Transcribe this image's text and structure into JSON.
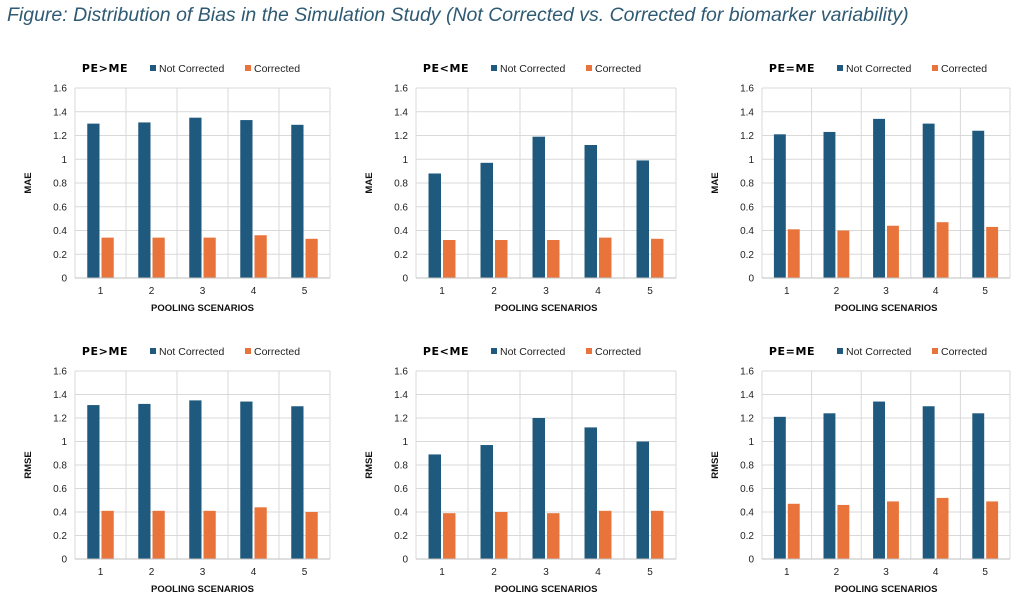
{
  "figure_title": "Figure:  Distribution of Bias in the Simulation Study (Not Corrected vs. Corrected for biomarker variability)",
  "colors": {
    "not_corrected": "#1f5a7e",
    "corrected": "#e8743b",
    "grid": "#d9d9d9"
  },
  "chart_data": [
    {
      "type": "bar",
      "title": "PE>ME",
      "xlabel": "POOLING SCENARIOS",
      "ylabel": "MAE",
      "categories": [
        "1",
        "2",
        "3",
        "4",
        "5"
      ],
      "ylim": [
        0,
        1.6
      ],
      "yticks": [
        "0",
        "0.2",
        "0.4",
        "0.6",
        "0.8",
        "1",
        "1.2",
        "1.4",
        "1.6"
      ],
      "legend": "top",
      "series": [
        {
          "name": "Not Corrected",
          "values": [
            1.3,
            1.31,
            1.35,
            1.33,
            1.29
          ]
        },
        {
          "name": "Corrected",
          "values": [
            0.34,
            0.34,
            0.34,
            0.36,
            0.33
          ]
        }
      ]
    },
    {
      "type": "bar",
      "title": "PE<ME",
      "xlabel": "POOLING SCENARIOS",
      "ylabel": "MAE",
      "categories": [
        "1",
        "2",
        "3",
        "4",
        "5"
      ],
      "ylim": [
        0,
        1.6
      ],
      "yticks": [
        "0",
        "0.2",
        "0.4",
        "0.6",
        "0.8",
        "1",
        "1.2",
        "1.4",
        "1.6"
      ],
      "legend": "top",
      "series": [
        {
          "name": "Not Corrected",
          "values": [
            0.88,
            0.97,
            1.19,
            1.12,
            0.99
          ]
        },
        {
          "name": "Corrected",
          "values": [
            0.32,
            0.32,
            0.32,
            0.34,
            0.33
          ]
        }
      ]
    },
    {
      "type": "bar",
      "title": "PE=ME",
      "xlabel": "POOLING SCENARIOS",
      "ylabel": "MAE",
      "categories": [
        "1",
        "2",
        "3",
        "4",
        "5"
      ],
      "ylim": [
        0,
        1.6
      ],
      "yticks": [
        "0",
        "0.2",
        "0.4",
        "0.6",
        "0.8",
        "1",
        "1.2",
        "1.4",
        "1.6"
      ],
      "legend": "top",
      "series": [
        {
          "name": "Not Corrected",
          "values": [
            1.21,
            1.23,
            1.34,
            1.3,
            1.24
          ]
        },
        {
          "name": "Corrected",
          "values": [
            0.41,
            0.4,
            0.44,
            0.47,
            0.43
          ]
        }
      ]
    },
    {
      "type": "bar",
      "title": "PE>ME",
      "xlabel": "POOLING SCENARIOS",
      "ylabel": "RMSE",
      "categories": [
        "1",
        "2",
        "3",
        "4",
        "5"
      ],
      "ylim": [
        0,
        1.6
      ],
      "yticks": [
        "0",
        "0.2",
        "0.4",
        "0.6",
        "0.8",
        "1",
        "1.2",
        "1.4",
        "1.6"
      ],
      "legend": "top",
      "series": [
        {
          "name": "Not Corrected",
          "values": [
            1.31,
            1.32,
            1.35,
            1.34,
            1.3
          ]
        },
        {
          "name": "Corrected",
          "values": [
            0.41,
            0.41,
            0.41,
            0.44,
            0.4
          ]
        }
      ]
    },
    {
      "type": "bar",
      "title": "PE<ME",
      "xlabel": "POOLING SCENARIOS",
      "ylabel": "RMSE",
      "categories": [
        "1",
        "2",
        "3",
        "4",
        "5"
      ],
      "ylim": [
        0,
        1.6
      ],
      "yticks": [
        "0",
        "0.2",
        "0.4",
        "0.6",
        "0.8",
        "1",
        "1.2",
        "1.4",
        "1.6"
      ],
      "legend": "top",
      "series": [
        {
          "name": "Not Corrected",
          "values": [
            0.89,
            0.97,
            1.2,
            1.12,
            1.0
          ]
        },
        {
          "name": "Corrected",
          "values": [
            0.39,
            0.4,
            0.39,
            0.41,
            0.41
          ]
        }
      ]
    },
    {
      "type": "bar",
      "title": "PE=ME",
      "xlabel": "POOLING SCENARIOS",
      "ylabel": "RMSE",
      "categories": [
        "1",
        "2",
        "3",
        "4",
        "5"
      ],
      "ylim": [
        0,
        1.6
      ],
      "yticks": [
        "0",
        "0.2",
        "0.4",
        "0.6",
        "0.8",
        "1",
        "1.2",
        "1.4",
        "1.6"
      ],
      "legend": "top",
      "series": [
        {
          "name": "Not Corrected",
          "values": [
            1.21,
            1.24,
            1.34,
            1.3,
            1.24
          ]
        },
        {
          "name": "Corrected",
          "values": [
            0.47,
            0.46,
            0.49,
            0.52,
            0.49
          ]
        }
      ]
    }
  ]
}
